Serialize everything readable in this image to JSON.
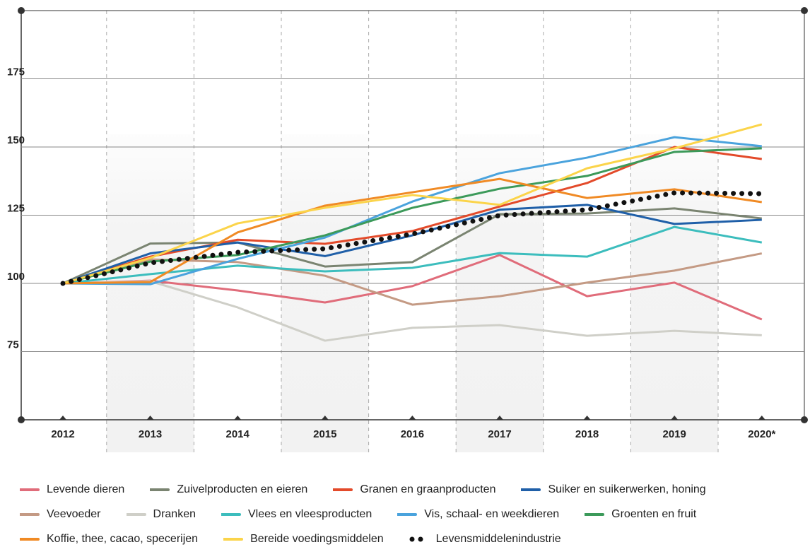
{
  "chart_data": {
    "type": "line",
    "categories": [
      "2012",
      "2013",
      "2014",
      "2015",
      "2016",
      "2017",
      "2018",
      "2019",
      "2020*"
    ],
    "ylim": [
      50,
      200
    ],
    "yticks": [
      75,
      100,
      125,
      150,
      175
    ],
    "grid": true,
    "series": [
      {
        "name": "Levende dieren",
        "color": "#e06c7a",
        "values": [
          100,
          101,
          97.4,
          93,
          99,
          110.4,
          95.3,
          100.3,
          86.8
        ]
      },
      {
        "name": "Zuivelproducten en eieren",
        "color": "#7a8471",
        "values": [
          100,
          114.6,
          115,
          106.2,
          107.8,
          125.4,
          125.6,
          127.5,
          123.8
        ]
      },
      {
        "name": "Granen en graanproducten",
        "color": "#e34a2a",
        "values": [
          100,
          109.8,
          116,
          114.5,
          119.2,
          128.2,
          136.8,
          150,
          145.6
        ]
      },
      {
        "name": "Suiker en suikerwerken, honing",
        "color": "#1f5fa8",
        "values": [
          100,
          111,
          115,
          110,
          117.6,
          127,
          128.8,
          121.8,
          123.3
        ]
      },
      {
        "name": "Veevoeder",
        "color": "#c49a84",
        "values": [
          100,
          108.8,
          107.8,
          102.8,
          92.2,
          95.3,
          100.3,
          104.7,
          111
        ]
      },
      {
        "name": "Dranken",
        "color": "#cfcfc8",
        "values": [
          100,
          100.8,
          91.2,
          79,
          83.7,
          84.7,
          80.8,
          82.6,
          81
        ]
      },
      {
        "name": "Vlees en vleesproducten",
        "color": "#3cbdbd",
        "values": [
          100,
          103.4,
          106.5,
          104.4,
          105.7,
          111.1,
          109.8,
          120.7,
          115
        ]
      },
      {
        "name": "Vis, schaal- en weekdieren",
        "color": "#4aa3dd",
        "values": [
          100,
          99.7,
          109,
          116.8,
          130,
          140.4,
          146.1,
          153.6,
          150.3
        ]
      },
      {
        "name": "Groenten en fruit",
        "color": "#3c9a5a",
        "values": [
          100,
          108,
          110.4,
          117.6,
          127.7,
          134.7,
          139.4,
          148.2,
          149.5
        ]
      },
      {
        "name": "Koffie, thee, cacao, specerijen",
        "color": "#f08a24",
        "values": [
          100,
          100.5,
          118.7,
          128.5,
          133.4,
          138.3,
          131.3,
          134.5,
          129.8
        ]
      },
      {
        "name": "Bereide voedingsmiddelen",
        "color": "#fbd44a",
        "values": [
          100,
          109.3,
          122,
          127.7,
          132.4,
          128.8,
          142.2,
          149.5,
          158.3
        ]
      },
      {
        "name": "Levensmiddelenindustrie",
        "color": "#111111",
        "style": "dotted",
        "values": [
          100,
          107.5,
          111.4,
          112.7,
          118.1,
          124.9,
          127,
          133.2,
          132.9
        ]
      }
    ]
  }
}
